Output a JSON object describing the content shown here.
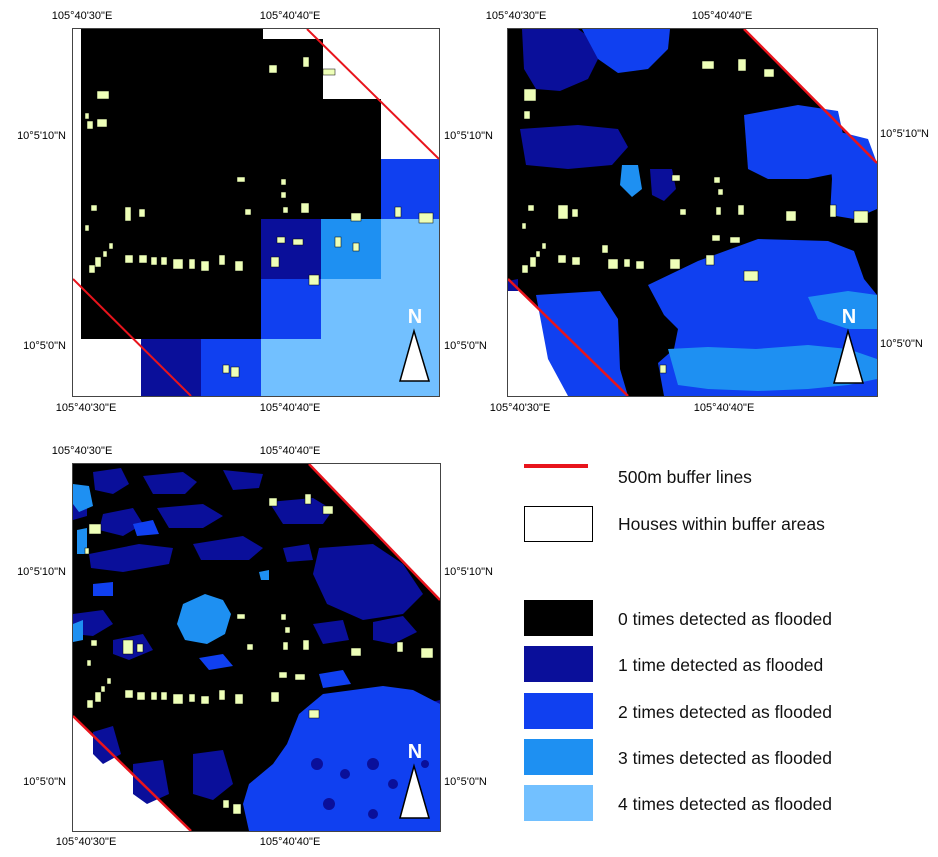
{
  "maps": [
    {
      "id": "map-top-left",
      "top_labels": [
        "105°40'30\"E",
        "105°40'40\"E"
      ],
      "bottom_labels": [
        "105°40'30\"E",
        "105°40'40\"E"
      ],
      "left_labels": [
        "10°5'10\"N",
        "10°5'0\"N"
      ],
      "right_labels": [
        "10°5'10\"N",
        "10°5'0\"N"
      ],
      "north_label": "N"
    },
    {
      "id": "map-top-right",
      "top_labels": [
        "105°40'30\"E",
        "105°40'40\"E"
      ],
      "bottom_labels": [
        "105°40'30\"E",
        "105°40'40\"E"
      ],
      "right_labels": [
        "10°5'10\"N",
        "10°5'0\"N"
      ],
      "north_label": "N"
    },
    {
      "id": "map-bottom-left",
      "top_labels": [
        "105°40'30\"E",
        "105°40'40\"E"
      ],
      "bottom_labels": [
        "105°40'30\"E",
        "105°40'40\"E"
      ],
      "left_labels": [
        "10°5'10\"N",
        "10°5'0\"N"
      ],
      "right_labels": [
        "10°5'10\"N",
        "10°5'0\"N"
      ],
      "north_label": "N"
    }
  ],
  "legend": {
    "items": [
      {
        "label": "500m buffer lines",
        "kind": "line",
        "color": "#e8141c"
      },
      {
        "label": "Houses within buffer areas",
        "kind": "box",
        "color": "#ffffff"
      },
      {
        "label": "0 times detected as flooded",
        "kind": "fill",
        "color": "#000000"
      },
      {
        "label": "1 time detected as flooded",
        "kind": "fill",
        "color": "#0a0f9a"
      },
      {
        "label": "2 times detected as flooded",
        "kind": "fill",
        "color": "#1040f0"
      },
      {
        "label": "3 times detected as flooded",
        "kind": "fill",
        "color": "#1e90f2"
      },
      {
        "label": "4 times detected as flooded",
        "kind": "fill",
        "color": "#72c0ff"
      }
    ]
  },
  "colors": {
    "house": "#eeffb8",
    "buffer_line": "#e8141c",
    "class0": "#000000",
    "class1": "#0a0f9a",
    "class2": "#1040f0",
    "class3": "#1e90f2",
    "class4": "#72c0ff"
  }
}
